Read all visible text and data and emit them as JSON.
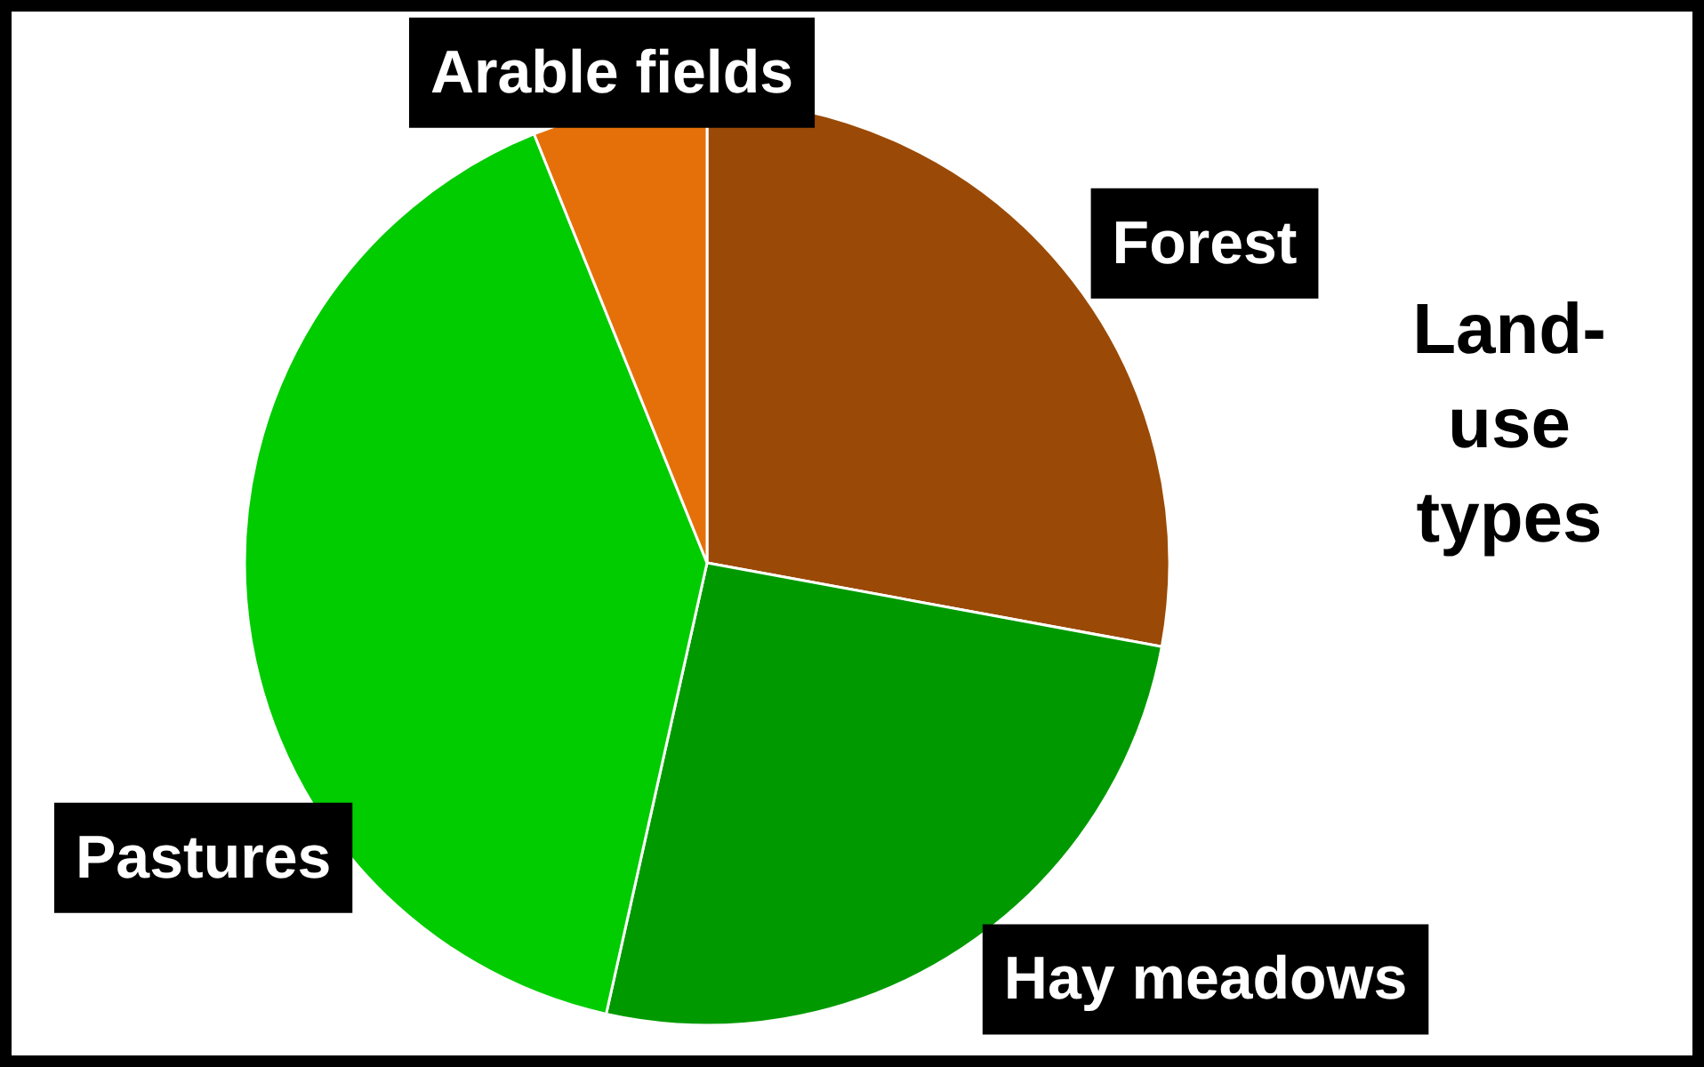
{
  "chart_data": {
    "type": "pie",
    "title": "Land-use types",
    "categories": [
      "Forest",
      "Hay meadows",
      "Pastures",
      "Arable fields"
    ],
    "values": [
      27.9,
      25.6,
      40.4,
      6.1
    ],
    "colors": [
      "#9a4a06",
      "#009a00",
      "#00cc00",
      "#e5700a"
    ]
  }
}
